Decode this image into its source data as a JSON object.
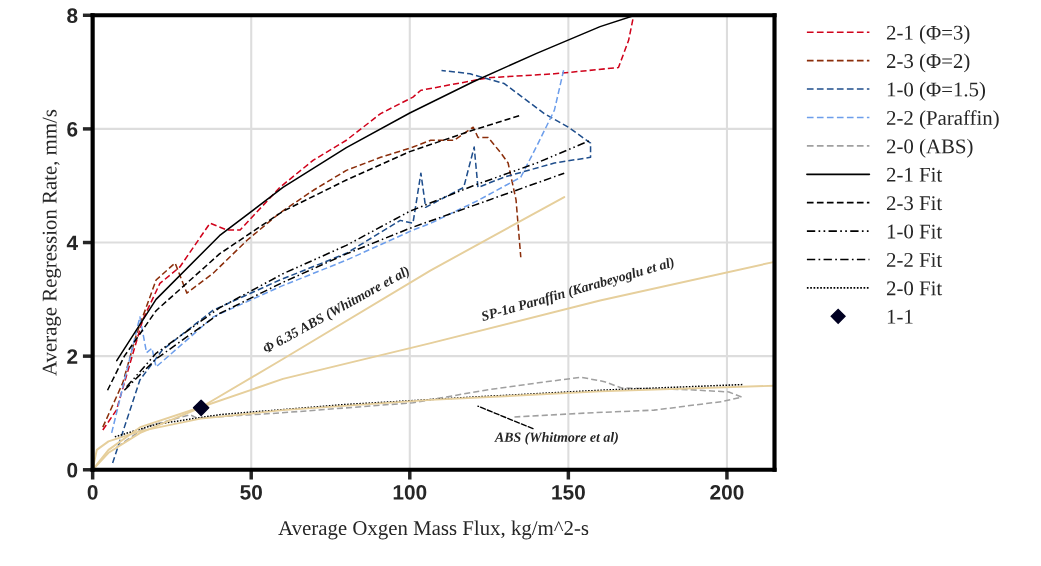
{
  "chart_data": {
    "type": "line",
    "xlabel": "Average Oxgen Mass Flux, kg/m^2-s",
    "ylabel": "Average Regression Rate, mm/s",
    "xlim": [
      0,
      215
    ],
    "ylim": [
      0,
      8
    ],
    "xticks": [
      0,
      50,
      100,
      150,
      200
    ],
    "yticks": [
      0,
      2,
      4,
      6,
      8
    ],
    "grid": true,
    "legend": "right",
    "series": [
      {
        "name": "2-1 (Φ=3)",
        "color": "#d0021b",
        "line_style": "dashed",
        "x": [
          3.2,
          7.5,
          15.8,
          21.2,
          27.5,
          37,
          42.4,
          46.5,
          59,
          69.6,
          80,
          90.8,
          101,
          103.5,
          124.7,
          145.6,
          165.8,
          169,
          170.6
        ],
        "values": [
          0.7,
          1.05,
          2.64,
          3.28,
          3.57,
          4.34,
          4.22,
          4.22,
          4.97,
          5.45,
          5.8,
          6.27,
          6.56,
          6.68,
          6.9,
          6.97,
          7.08,
          7.56,
          8.0
        ]
      },
      {
        "name": "2-3 (Φ=2)",
        "color": "#8b2e0b",
        "line_style": "dashed",
        "x": [
          3.2,
          9.5,
          13.9,
          20,
          26,
          29.7,
          38,
          48.7,
          59,
          69.6,
          80,
          90.8,
          101,
          106.6,
          114,
          120,
          121.5,
          124.7,
          128.8,
          131,
          133.5,
          135
        ],
        "values": [
          0.75,
          1.53,
          2.4,
          3.34,
          3.64,
          3.11,
          3.46,
          4.04,
          4.52,
          4.92,
          5.27,
          5.5,
          5.68,
          5.8,
          5.8,
          6.03,
          5.85,
          5.85,
          5.57,
          5.4,
          4.75,
          3.74
        ]
      },
      {
        "name": "1-0 (Φ=1.5)",
        "color": "#1f4e8c",
        "line_style": "dashed",
        "x": [
          6.3,
          14.9,
          22,
          38,
          59,
          80,
          97,
          101,
          103.5,
          105,
          117,
          120.3,
          121.5,
          129.7,
          145.6,
          157,
          157,
          150,
          142.4,
          129.7,
          119,
          110
        ],
        "values": [
          0.12,
          1.58,
          2.11,
          2.81,
          3.34,
          3.81,
          4.39,
          4.34,
          5.22,
          4.62,
          4.97,
          5.68,
          4.97,
          5.15,
          5.4,
          5.5,
          5.75,
          6.03,
          6.27,
          6.8,
          6.97,
          7.03
        ]
      },
      {
        "name": "2-2 (Paraffin)",
        "color": "#6d9eeb",
        "line_style": "dashed",
        "x": [
          6,
          14.9,
          17,
          18.7,
          20,
          38,
          59,
          80,
          101,
          106.6,
          121.5,
          135,
          140.5,
          145.6,
          148.7
        ],
        "values": [
          0.65,
          2.69,
          2.06,
          2.14,
          1.81,
          2.69,
          3.22,
          3.69,
          4.22,
          4.34,
          4.74,
          5.15,
          5.75,
          6.33,
          7.08
        ]
      },
      {
        "name": "2-0 (ABS)",
        "color": "#a0a0a0",
        "line_style": "dashed",
        "x": [
          7.6,
          17,
          30.7,
          32.9,
          59,
          101,
          124.7,
          140.5,
          154,
          161.4,
          166.8,
          188,
          200.6,
          204.7,
          198.4,
          177,
          156,
          133
        ],
        "values": [
          0.4,
          0.76,
          0.97,
          0.91,
          1.0,
          1.18,
          1.41,
          1.53,
          1.63,
          1.55,
          1.44,
          1.41,
          1.37,
          1.28,
          1.2,
          1.05,
          1.0,
          0.93
        ]
      },
      {
        "name": "2-1 Fit",
        "color": "#000000",
        "line_style": "solid",
        "x": [
          7.6,
          20,
          40,
          60,
          80,
          100,
          120,
          140,
          160,
          171
        ],
        "values": [
          1.92,
          3.0,
          4.12,
          4.97,
          5.67,
          6.28,
          6.83,
          7.33,
          7.8,
          8.0
        ]
      },
      {
        "name": "2-3 Fit",
        "color": "#000000",
        "line_style": "dashed",
        "x": [
          4.7,
          10,
          20,
          40,
          60,
          80,
          100,
          120,
          135
        ],
        "values": [
          1.4,
          2.0,
          2.8,
          3.8,
          4.55,
          5.1,
          5.6,
          5.98,
          6.24
        ]
      },
      {
        "name": "1-0 Fit",
        "color": "#000000",
        "line_style": "dashdotdot",
        "x": [
          10.7,
          20,
          40,
          60,
          80,
          100,
          120,
          140,
          157
        ],
        "values": [
          1.46,
          2.05,
          2.85,
          3.45,
          3.95,
          4.55,
          5.0,
          5.4,
          5.8
        ]
      },
      {
        "name": "2-2 Fit",
        "color": "#000000",
        "line_style": "dashdot",
        "x": [
          10,
          20,
          40,
          60,
          80,
          100,
          120,
          148.7
        ],
        "values": [
          1.4,
          1.95,
          2.75,
          3.3,
          3.8,
          4.25,
          4.65,
          5.22
        ]
      },
      {
        "name": "2-0 Fit",
        "color": "#000000",
        "line_style": "dotted",
        "x": [
          7,
          20,
          40,
          80,
          120,
          160,
          205
        ],
        "values": [
          0.58,
          0.8,
          0.97,
          1.15,
          1.28,
          1.4,
          1.5
        ]
      },
      {
        "color": "#e6cf9c",
        "line_style": "solid",
        "x": [
          0,
          5,
          15,
          34.2,
          60,
          106.6,
          148.7
        ],
        "values": [
          0,
          0.3,
          0.65,
          1.1,
          1.95,
          3.51,
          4.8
        ]
      },
      {
        "color": "#e6cf9c",
        "line_style": "solid",
        "x": [
          0,
          5,
          15,
          34,
          60,
          106.6,
          160,
          215
        ],
        "values": [
          0,
          0.35,
          0.75,
          1.1,
          1.6,
          2.23,
          2.98,
          3.66
        ]
      },
      {
        "color": "#e6cf9c",
        "line_style": "solid",
        "x": [
          0,
          1.3,
          5,
          15,
          34,
          60,
          106.6,
          160,
          215
        ],
        "values": [
          0,
          0.35,
          0.5,
          0.68,
          0.9,
          1.05,
          1.23,
          1.38,
          1.48
        ]
      },
      {
        "name": "1-1",
        "type": "scatter",
        "marker": "diamond",
        "color": "#000022",
        "x": [
          34.2
        ],
        "values": [
          1.09
        ]
      }
    ],
    "annotations": [
      "Φ 6.35 ABS (Whitmore et al)",
      "SP-1a Paraffin (Karabeyoglu et al)",
      "ABS (Whitmore et al)"
    ]
  }
}
